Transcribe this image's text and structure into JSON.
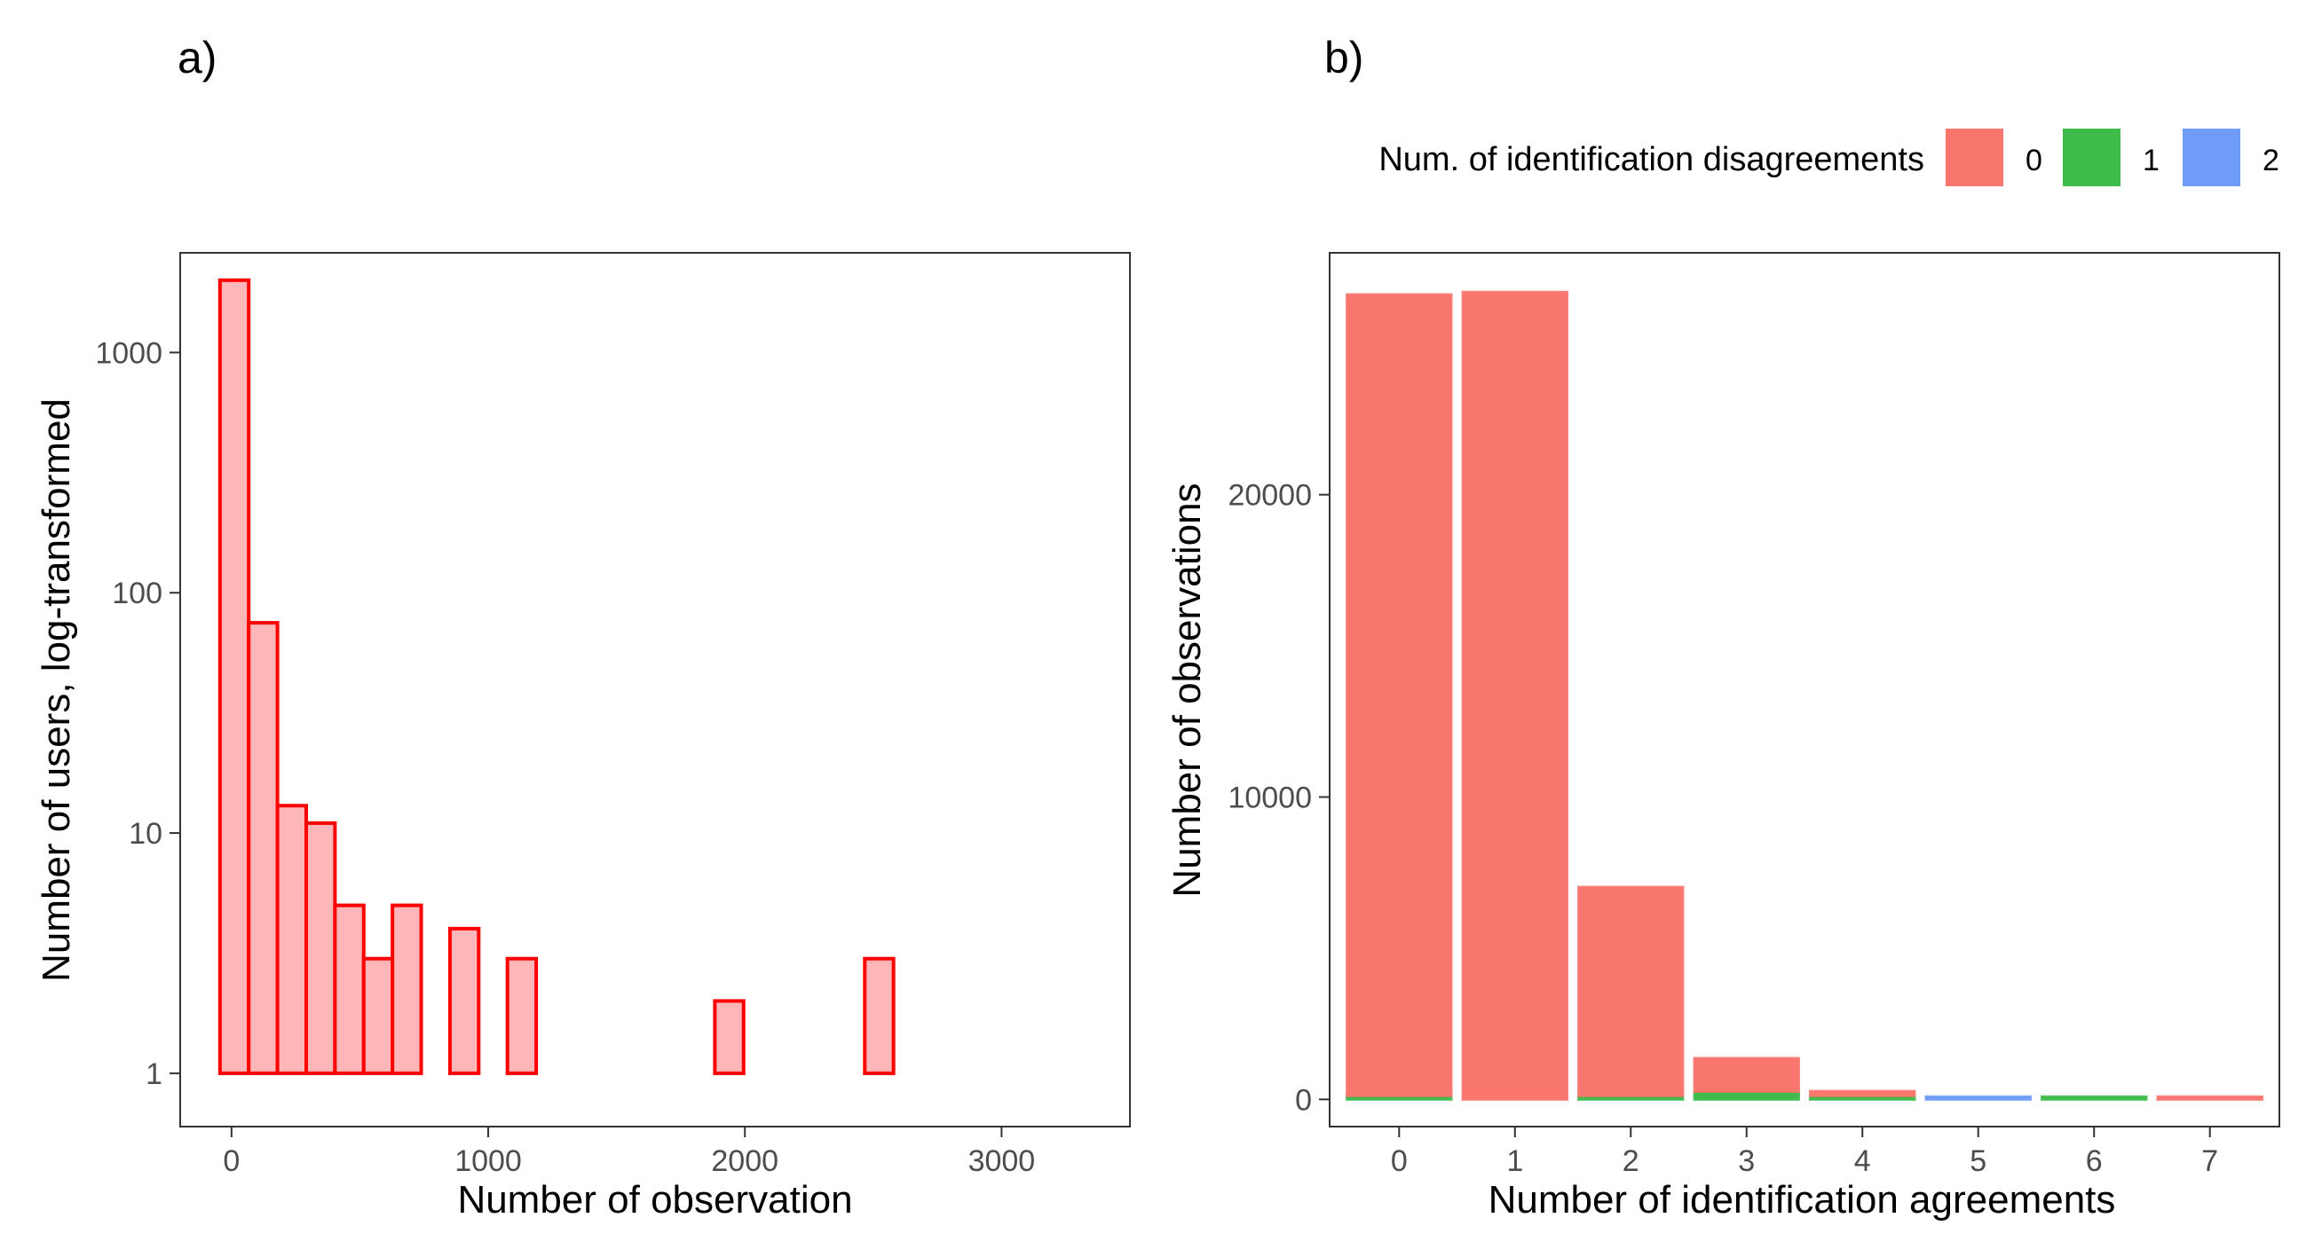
{
  "panel_a": {
    "tag": "a)",
    "xlabel": "Number of observation",
    "ylabel": "Number of users, log-transformed",
    "x_ticks": [
      0,
      1000,
      2000,
      3000
    ],
    "y_ticks": [
      1,
      10,
      100,
      1000
    ]
  },
  "panel_b": {
    "tag": "b)",
    "xlabel": "Number of identification agreements",
    "ylabel": "Number of observations",
    "x_ticks": [
      0,
      1,
      2,
      3,
      4,
      5,
      6,
      7
    ],
    "y_ticks": [
      0,
      10000,
      20000
    ],
    "legend_title": "Num. of identification disagreements",
    "legend_labels": [
      "0",
      "1",
      "2"
    ]
  },
  "chart_data": [
    {
      "type": "bar",
      "chart": "histogram",
      "title": "",
      "xlabel": "Number of observation",
      "ylabel": "Number of users, log-transformed",
      "y_scale": "log10",
      "xlim": [
        -200,
        3500
      ],
      "ylim": [
        0.6,
        2600
      ],
      "bin_width": 112,
      "bin_centers": [
        11,
        123,
        235,
        347,
        459,
        571,
        683,
        795,
        907,
        1131,
        1243,
        1603,
        1939,
        2163,
        2523,
        3355
      ],
      "counts": [
        2000,
        75,
        13,
        11,
        5,
        3,
        5,
        1,
        4,
        3,
        1,
        1,
        2,
        1,
        3,
        1
      ],
      "color_fill": "#ffb6b9",
      "color_edge": "#ff0000",
      "grid": false
    },
    {
      "type": "bar",
      "chart": "stacked",
      "title": "",
      "xlabel": "Number of identification agreements",
      "ylabel": "Number of observations",
      "categories": [
        "0",
        "1",
        "2",
        "3",
        "4",
        "5",
        "6",
        "7"
      ],
      "ylim": [
        -900,
        28000
      ],
      "series": [
        {
          "name": "0",
          "color": "#f8766d",
          "values": [
            26500,
            26700,
            6900,
            1100,
            150,
            0,
            0,
            40
          ]
        },
        {
          "name": "1",
          "color": "#3fbb4c",
          "values": [
            120,
            0,
            120,
            260,
            120,
            0,
            60,
            0
          ]
        },
        {
          "name": "2",
          "color": "#6f9cf7",
          "values": [
            0,
            0,
            0,
            0,
            0,
            80,
            0,
            0
          ]
        }
      ],
      "legend_title": "Num. of identification disagreements",
      "legend_position": "top",
      "grid": false
    }
  ]
}
